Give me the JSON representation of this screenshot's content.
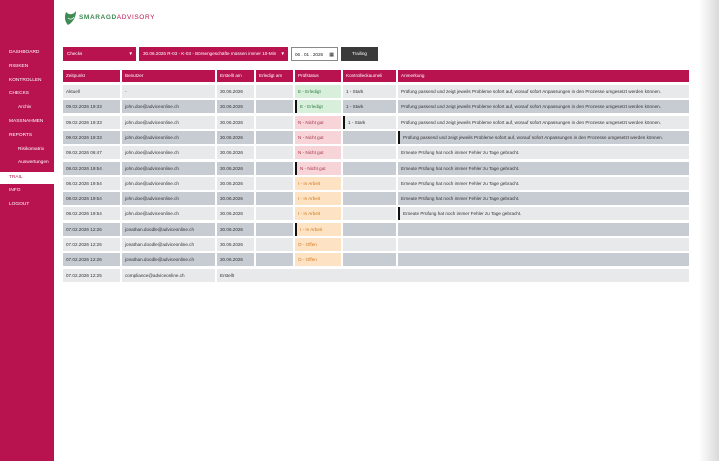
{
  "brand": {
    "name_a": "SMARAGD",
    "name_b": "ADVISORY",
    "color_green": "#3f8a55",
    "color_brand": "#b8134f"
  },
  "nav": [
    {
      "label": "DASHBOARD",
      "sub": false,
      "active": false
    },
    {
      "label": "RISIKEN",
      "sub": false,
      "active": false
    },
    {
      "label": "KONTROLLEN",
      "sub": false,
      "active": false
    },
    {
      "label": "CHECKS",
      "sub": false,
      "active": false
    },
    {
      "label": "Archiv",
      "sub": true,
      "active": false
    },
    {
      "label": "MASSNAHMEN",
      "sub": false,
      "active": false
    },
    {
      "label": "REPORTS",
      "sub": false,
      "active": false
    },
    {
      "label": "Risikomatrix",
      "sub": true,
      "active": false
    },
    {
      "label": "Auswertungen",
      "sub": true,
      "active": false
    },
    {
      "label": "TRAIL",
      "sub": false,
      "active": true
    },
    {
      "label": "INFO",
      "sub": false,
      "active": false
    },
    {
      "label": "LOGOUT",
      "sub": false,
      "active": false
    }
  ],
  "filters": {
    "type_select": "Checks",
    "check_select": "30.06.2026 R-03 - K-03 - Börsengeschäfte müssen immer 10-Min",
    "date_value": "06 . 01 . 2026",
    "trail_button": "Trailing"
  },
  "table": {
    "columns": [
      "Zeitpunkt",
      "Benutzer",
      "Erstellt am",
      "Erledigt am",
      "Prüfstatus",
      "Kontrolleckaumeli",
      "Anmerkung"
    ],
    "rows": [
      {
        "zeitpunkt": "Aktuell",
        "benutzer": "-",
        "erstellt": "30.06.2026",
        "erledigt": "",
        "status": "E - Erledigt",
        "status_kind": "erledigt",
        "kontrolle": "1 - Stark",
        "anmerkung": "Prüfung passend und zeigt jeweils Probleme sofort auf, worauf sofort Anpassungen in den Prozesse umgesetzt werden können."
      },
      {
        "zeitpunkt": "09.02.2026 19:33",
        "benutzer": "john.doe@adviceonline.ch",
        "erstellt": "30.06.2026",
        "erledigt": "",
        "status": "E - Erledigt",
        "status_kind": "erledigt",
        "kontrolle": "1 - Stark",
        "anmerkung": "Prüfung passend und zeigt jeweils Probleme sofort auf, worauf sofort Anpassungen in den Prozesse umgesetzt werden können."
      },
      {
        "zeitpunkt": "09.02.2026 19:33",
        "benutzer": "john.doe@adviceonline.ch",
        "erstellt": "30.06.2026",
        "erledigt": "",
        "status": "N - Nicht gut",
        "status_kind": "nicht",
        "kontrolle": "1 - Stark",
        "anmerkung": "Prüfung passend und zeigt jeweils Probleme sofort auf, worauf sofort Anpassungen in den Prozesse umgesetzt werden können."
      },
      {
        "zeitpunkt": "09.02.2026 19:33",
        "benutzer": "john.doe@adviceonline.ch",
        "erstellt": "30.06.2026",
        "erledigt": "",
        "status": "N - Nicht gut",
        "status_kind": "nicht",
        "kontrolle": "",
        "anmerkung": "Prüfung passend und zeigt jeweils Probleme sofort auf, worauf sofort Anpassungen in den Prozesse umgesetzt werden können."
      },
      {
        "zeitpunkt": "09.02.2026 06:47",
        "benutzer": "john.doe@adviceonline.ch",
        "erstellt": "30.06.2026",
        "erledigt": "",
        "status": "N - Nicht gut",
        "status_kind": "nicht",
        "kontrolle": "",
        "anmerkung": "Erneute Prüfung hat noch immer Fehler zu Tage gebracht."
      },
      {
        "zeitpunkt": "08.02.2026 19:54",
        "benutzer": "john.doe@adviceonline.ch",
        "erstellt": "30.06.2026",
        "erledigt": "",
        "status": "N - Nicht gut",
        "status_kind": "nicht",
        "kontrolle": "",
        "anmerkung": "Erneute Prüfung hat noch immer Fehler zu Tage gebracht."
      },
      {
        "zeitpunkt": "08.02.2026 19:54",
        "benutzer": "john.doe@adviceonline.ch",
        "erstellt": "30.06.2026",
        "erledigt": "",
        "status": "I - In Arbeit",
        "status_kind": "arbeit",
        "kontrolle": "",
        "anmerkung": "Erneute Prüfung hat noch immer Fehler zu Tage gebracht."
      },
      {
        "zeitpunkt": "08.02.2026 19:54",
        "benutzer": "john.doe@adviceonline.ch",
        "erstellt": "30.06.2026",
        "erledigt": "",
        "status": "I - In Arbeit",
        "status_kind": "arbeit",
        "kontrolle": "",
        "anmerkung": "Erneute Prüfung hat noch immer Fehler zu Tage gebracht."
      },
      {
        "zeitpunkt": "08.02.2026 19:54",
        "benutzer": "john.doe@adviceonline.ch",
        "erstellt": "30.06.2026",
        "erledigt": "",
        "status": "I - In Arbeit",
        "status_kind": "arbeit",
        "kontrolle": "",
        "anmerkung": "Erneute Prüfung hat noch immer Fehler zu Tage gebracht."
      },
      {
        "zeitpunkt": "07.02.2026 12:26",
        "benutzer": "jonathan.doodle@adviceonline.ch",
        "erstellt": "30.06.2026",
        "erledigt": "",
        "status": "I - In Arbeit",
        "status_kind": "arbeit",
        "kontrolle": "",
        "anmerkung": ""
      },
      {
        "zeitpunkt": "07.02.2026 12:26",
        "benutzer": "jonathan.doodle@adviceonline.ch",
        "erstellt": "30.06.2026",
        "erledigt": "",
        "status": "O - Offen",
        "status_kind": "offen",
        "kontrolle": "",
        "anmerkung": ""
      },
      {
        "zeitpunkt": "07.02.2026 12:26",
        "benutzer": "jonathan.doodle@adviceonline.ch",
        "erstellt": "30.06.2026",
        "erledigt": "",
        "status": "O - Offen",
        "status_kind": "offen",
        "kontrolle": "",
        "anmerkung": ""
      },
      {
        "zeitpunkt": "07.02.2026 12:25",
        "benutzer": "compliance@adviceonline.ch",
        "erstellt": "Erstellt",
        "erledigt": "",
        "status": "",
        "status_kind": "",
        "kontrolle": "",
        "anmerkung": ""
      }
    ]
  }
}
